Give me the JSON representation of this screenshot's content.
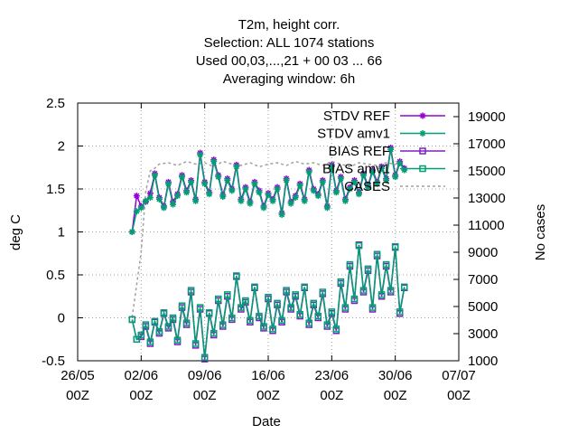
{
  "chart_data": {
    "type": "line",
    "title_lines": [
      "T2m, height corr.",
      "Selection: ALL   1074 stations",
      "Used  00,03,...,21  + 00 03 ... 66",
      "Averaging window:  6h"
    ],
    "xlabel": "Date",
    "ylabel": "deg C",
    "y2label": "No cases",
    "xaxis": {
      "range_days": [
        0,
        42
      ],
      "ticks": [
        {
          "day": 0,
          "date": "26/05",
          "hour": "00Z"
        },
        {
          "day": 7,
          "date": "02/06",
          "hour": "00Z"
        },
        {
          "day": 14,
          "date": "09/06",
          "hour": "00Z"
        },
        {
          "day": 21,
          "date": "16/06",
          "hour": "00Z"
        },
        {
          "day": 28,
          "date": "23/06",
          "hour": "00Z"
        },
        {
          "day": 35,
          "date": "30/06",
          "hour": "00Z"
        },
        {
          "day": 42,
          "date": "07/07",
          "hour": "00Z"
        }
      ]
    },
    "ylim": [
      -0.5,
      2.5
    ],
    "yticks": [
      "-0.5",
      "0",
      "0.5",
      "1",
      "1.5",
      "2",
      "2.5"
    ],
    "y2lim": [
      1000,
      20000
    ],
    "y2ticks": [
      "1000",
      "3000",
      "5000",
      "7000",
      "9000",
      "11000",
      "13000",
      "15000",
      "17000",
      "19000"
    ],
    "grid": true,
    "legend_position": "top-right",
    "series": [
      {
        "name": "STDV REF",
        "axis": "y",
        "color": "#9400d3",
        "marker": "star",
        "dash": false,
        "x": [
          6.0,
          6.5,
          7.0,
          7.5,
          8.0,
          8.5,
          9.0,
          9.5,
          10.0,
          10.5,
          11.0,
          11.5,
          12.0,
          12.5,
          13.0,
          13.5,
          14.0,
          14.5,
          15.0,
          15.5,
          16.0,
          16.5,
          17.0,
          17.5,
          18.0,
          18.5,
          19.0,
          19.5,
          20.0,
          20.5,
          21.0,
          21.5,
          22.0,
          22.5,
          23.0,
          23.5,
          24.0,
          24.5,
          25.0,
          25.5,
          26.0,
          26.5,
          27.0,
          27.5,
          28.0,
          28.5,
          29.0,
          29.5,
          30.0,
          30.5,
          31.0,
          31.5,
          32.0,
          32.5,
          33.0,
          33.5,
          34.0,
          34.5,
          35.0,
          35.5,
          36.0
        ],
        "y": [
          1.0,
          1.42,
          1.3,
          1.35,
          1.45,
          1.68,
          1.4,
          1.3,
          1.58,
          1.35,
          1.44,
          1.66,
          1.48,
          1.6,
          1.38,
          1.92,
          1.58,
          1.46,
          1.84,
          1.66,
          1.43,
          1.62,
          1.5,
          1.78,
          1.38,
          1.52,
          1.35,
          1.58,
          1.48,
          1.3,
          1.45,
          1.38,
          1.52,
          1.22,
          1.62,
          1.35,
          1.42,
          1.56,
          1.38,
          1.72,
          1.5,
          1.44,
          1.6,
          1.3,
          1.78,
          1.48,
          1.64,
          1.38,
          1.52,
          1.6,
          1.46,
          1.68,
          1.54,
          1.72,
          1.58,
          1.76,
          1.62,
          1.98,
          1.66,
          1.82,
          1.74
        ]
      },
      {
        "name": "STDV amv1",
        "axis": "y",
        "color": "#009e73",
        "marker": "star",
        "dash": false,
        "x": [
          6.0,
          6.5,
          7.0,
          7.5,
          8.0,
          8.5,
          9.0,
          9.5,
          10.0,
          10.5,
          11.0,
          11.5,
          12.0,
          12.5,
          13.0,
          13.5,
          14.0,
          14.5,
          15.0,
          15.5,
          16.0,
          16.5,
          17.0,
          17.5,
          18.0,
          18.5,
          19.0,
          19.5,
          20.0,
          20.5,
          21.0,
          21.5,
          22.0,
          22.5,
          23.0,
          23.5,
          24.0,
          24.5,
          25.0,
          25.5,
          26.0,
          26.5,
          27.0,
          27.5,
          28.0,
          28.5,
          29.0,
          29.5,
          30.0,
          30.5,
          31.0,
          31.5,
          32.0,
          32.5,
          33.0,
          33.5,
          34.0,
          34.5,
          35.0,
          35.5,
          36.0
        ],
        "y": [
          1.0,
          1.24,
          1.28,
          1.36,
          1.4,
          1.66,
          1.38,
          1.28,
          1.56,
          1.32,
          1.42,
          1.64,
          1.46,
          1.58,
          1.36,
          1.9,
          1.56,
          1.44,
          1.82,
          1.64,
          1.41,
          1.6,
          1.48,
          1.76,
          1.36,
          1.5,
          1.33,
          1.56,
          1.46,
          1.28,
          1.43,
          1.36,
          1.5,
          1.2,
          1.6,
          1.33,
          1.4,
          1.54,
          1.36,
          1.7,
          1.48,
          1.42,
          1.58,
          1.28,
          1.76,
          1.46,
          1.62,
          1.36,
          1.5,
          1.58,
          1.44,
          1.66,
          1.52,
          1.7,
          1.56,
          1.74,
          1.6,
          1.96,
          1.64,
          1.8,
          1.72
        ]
      },
      {
        "name": "BIAS REF",
        "axis": "y",
        "color": "#7b20c0",
        "marker": "square",
        "dash": false,
        "x": [
          6.0,
          6.5,
          7.0,
          7.5,
          8.0,
          8.5,
          9.0,
          9.5,
          10.0,
          10.5,
          11.0,
          11.5,
          12.0,
          12.5,
          13.0,
          13.5,
          14.0,
          14.5,
          15.0,
          15.5,
          16.0,
          16.5,
          17.0,
          17.5,
          18.0,
          18.5,
          19.0,
          19.5,
          20.0,
          20.5,
          21.0,
          21.5,
          22.0,
          22.5,
          23.0,
          23.5,
          24.0,
          24.5,
          25.0,
          25.5,
          26.0,
          26.5,
          27.0,
          27.5,
          28.0,
          28.5,
          29.0,
          29.5,
          30.0,
          30.5,
          31.0,
          31.5,
          32.0,
          32.5,
          33.0,
          33.5,
          34.0,
          34.5,
          35.0,
          35.5,
          36.0
        ],
        "y": [
          -0.02,
          -0.25,
          -0.22,
          -0.1,
          -0.3,
          -0.05,
          -0.18,
          0.05,
          -0.12,
          -0.02,
          -0.28,
          0.12,
          -0.08,
          0.3,
          -0.32,
          0.1,
          -0.48,
          0.05,
          -0.2,
          0.2,
          -0.1,
          0.25,
          -0.02,
          0.48,
          0.1,
          0.18,
          -0.05,
          0.35,
          0.0,
          -0.12,
          0.22,
          -0.15,
          0.15,
          -0.05,
          0.3,
          0.1,
          0.25,
          0.02,
          0.35,
          -0.08,
          0.15,
          0.0,
          0.28,
          -0.1,
          0.05,
          -0.15,
          0.4,
          0.1,
          0.6,
          0.2,
          0.85,
          0.3,
          0.55,
          0.1,
          0.72,
          0.25,
          0.6,
          0.3,
          0.82,
          0.05,
          0.35
        ]
      },
      {
        "name": "BIAS amv1",
        "axis": "y",
        "color": "#009e73",
        "marker": "square",
        "dash": false,
        "x": [
          6.0,
          6.5,
          7.0,
          7.5,
          8.0,
          8.5,
          9.0,
          9.5,
          10.0,
          10.5,
          11.0,
          11.5,
          12.0,
          12.5,
          13.0,
          13.5,
          14.0,
          14.5,
          15.0,
          15.5,
          16.0,
          16.5,
          17.0,
          17.5,
          18.0,
          18.5,
          19.0,
          19.5,
          20.0,
          20.5,
          21.0,
          21.5,
          22.0,
          22.5,
          23.0,
          23.5,
          24.0,
          24.5,
          25.0,
          25.5,
          26.0,
          26.5,
          27.0,
          27.5,
          28.0,
          28.5,
          29.0,
          29.5,
          30.0,
          30.5,
          31.0,
          31.5,
          32.0,
          32.5,
          33.0,
          33.5,
          34.0,
          34.5,
          35.0,
          35.5,
          36.0
        ],
        "y": [
          -0.02,
          -0.25,
          -0.2,
          -0.08,
          -0.28,
          -0.04,
          -0.16,
          0.06,
          -0.1,
          0.0,
          -0.26,
          0.14,
          -0.06,
          0.32,
          -0.3,
          0.12,
          -0.46,
          0.06,
          -0.18,
          0.22,
          -0.08,
          0.27,
          0.0,
          0.49,
          0.12,
          0.2,
          -0.03,
          0.36,
          0.02,
          -0.1,
          0.24,
          -0.13,
          0.17,
          -0.03,
          0.32,
          0.12,
          0.27,
          0.04,
          0.36,
          -0.06,
          0.17,
          0.02,
          0.3,
          -0.08,
          0.07,
          -0.13,
          0.42,
          0.12,
          0.62,
          0.22,
          0.84,
          0.32,
          0.57,
          0.12,
          0.74,
          0.27,
          0.62,
          0.32,
          0.83,
          0.07,
          0.36
        ]
      },
      {
        "name": "CASES",
        "axis": "y2",
        "color": "#a0a0a0",
        "marker": "none",
        "dash": true,
        "x": [
          6.0,
          7.0,
          7.5,
          8.0,
          8.5,
          9.0,
          10.0,
          11.0,
          12.0,
          13.0,
          14.0,
          15.0,
          16.0,
          17.0,
          18.0,
          19.0,
          20.0,
          21.0,
          22.0,
          23.0,
          24.0,
          25.0,
          26.0,
          27.0,
          28.0,
          29.0,
          30.0,
          31.0,
          32.0,
          33.0,
          34.0,
          35.0,
          36.0
        ],
        "y": [
          4200,
          9000,
          13500,
          15000,
          15200,
          15500,
          15600,
          15400,
          15700,
          15500,
          15600,
          15300,
          15700,
          15500,
          15400,
          15600,
          15300,
          15500,
          15600,
          15400,
          15700,
          15500,
          15600,
          15400,
          15700,
          15500,
          15300,
          15600,
          15500,
          15400,
          15600,
          15500,
          15700
        ]
      }
    ]
  }
}
